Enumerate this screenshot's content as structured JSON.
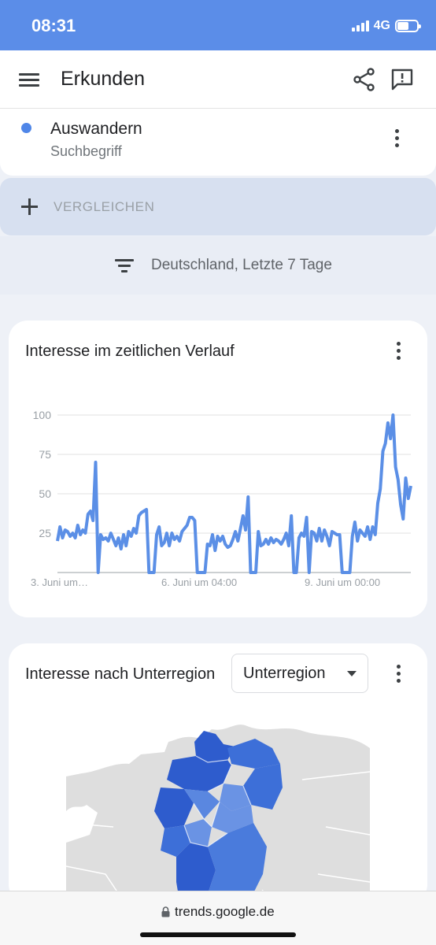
{
  "status_bar": {
    "time": "08:31",
    "network": "4G",
    "battery_level": 0.6
  },
  "app_bar": {
    "title": "Erkunden",
    "menu_icon": "menu-icon",
    "share_icon": "share-icon",
    "feedback_icon": "feedback-icon"
  },
  "term": {
    "name": "Auswandern",
    "type": "Suchbegriff",
    "color": "#4f86e8"
  },
  "compare": {
    "label": "VERGLEICHEN"
  },
  "filter": {
    "label": "Deutschland, Letzte 7 Tage"
  },
  "interest_over_time": {
    "title": "Interesse im zeitlichen Verlauf"
  },
  "chart_data": {
    "type": "line",
    "title": "Interesse im zeitlichen Verlauf",
    "ylim": [
      0,
      100
    ],
    "y_ticks": [
      100,
      75,
      50,
      25
    ],
    "x_tick_labels": [
      "3. Juni um…",
      "6. Juni um 04:00",
      "9. Juni um 00:00"
    ],
    "grid": true,
    "series": [
      {
        "color": "#5b8fe6",
        "values": [
          20,
          29,
          22,
          27,
          26,
          23,
          25,
          22,
          30,
          24,
          27,
          25,
          37,
          39,
          33,
          70,
          0,
          24,
          21,
          22,
          20,
          25,
          21,
          17,
          22,
          15,
          24,
          17,
          26,
          23,
          28,
          25,
          36,
          38,
          39,
          40,
          0,
          0,
          0,
          24,
          29,
          17,
          19,
          25,
          17,
          25,
          21,
          23,
          20,
          26,
          28,
          30,
          35,
          35,
          33,
          0,
          0,
          0,
          0,
          18,
          17,
          24,
          14,
          23,
          20,
          23,
          18,
          16,
          17,
          21,
          26,
          20,
          28,
          36,
          27,
          48,
          0,
          0,
          0,
          26,
          17,
          18,
          21,
          18,
          22,
          19,
          21,
          20,
          18,
          21,
          25,
          17,
          36,
          0,
          0,
          22,
          25,
          23,
          35,
          0,
          26,
          25,
          20,
          28,
          20,
          27,
          23,
          17,
          26,
          25,
          24,
          24,
          0,
          0,
          0,
          0,
          23,
          32,
          20,
          27,
          25,
          23,
          29,
          21,
          29,
          24,
          44,
          53,
          77,
          82,
          95,
          85,
          100,
          67,
          59,
          43,
          34,
          60,
          47,
          55
        ]
      }
    ]
  },
  "interest_by_subregion": {
    "title": "Interesse nach Unterregion",
    "dropdown_value": "Unterregion"
  },
  "map": {
    "land_color": "#dedede",
    "water_color": "#ffffff",
    "border_color": "#ffffff",
    "region_colors": [
      "#2e5ccd",
      "#3d6fd8",
      "#4a7bdc",
      "#6a93e4",
      "#5a87e0"
    ]
  },
  "browser": {
    "url": "trends.google.de"
  }
}
